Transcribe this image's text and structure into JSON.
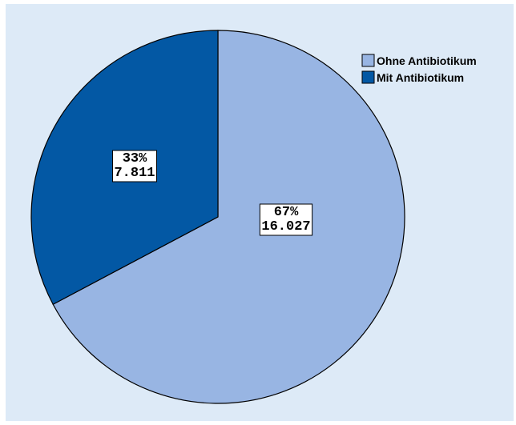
{
  "chart_data": {
    "type": "pie",
    "title": "",
    "slices": [
      {
        "label": "Ohne Antibiotikum",
        "value": 16027,
        "percent_label": "67%",
        "value_label": "16.027",
        "color": "#98b5e3"
      },
      {
        "label": "Mit Antibiotikum",
        "value": 7811,
        "percent_label": "33%",
        "value_label": "7.811",
        "color": "#0358a4"
      }
    ],
    "legend_position": "top-right",
    "start_angle_deg": 0,
    "direction": "clockwise"
  },
  "colors": {
    "background": "#ddeaf7",
    "slice_border": "#000000",
    "label_box": "#ffffff"
  }
}
